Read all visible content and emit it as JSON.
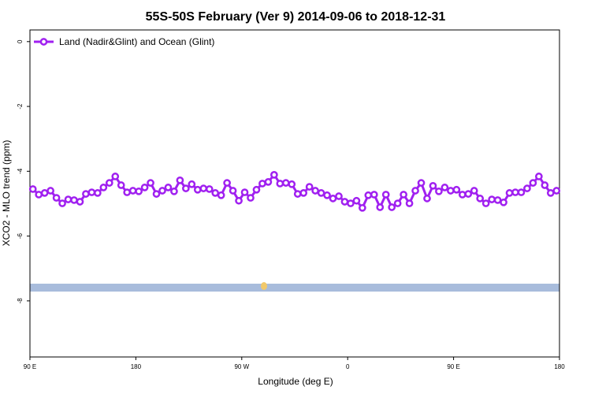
{
  "chart_data": {
    "type": "line",
    "title": "55S-50S February (Ver 9)   2014-09-06 to 2018-12-31",
    "x_label": "Longitude (deg E)",
    "y_label": "XCO2 - MLO trend (ppm)",
    "legend": "top-left",
    "xlim": [
      90,
      540
    ],
    "xticks": [
      {
        "value": 90,
        "label": "90 E"
      },
      180,
      {
        "value": 270,
        "label": "90 W"
      },
      {
        "value": 360,
        "label": "0"
      },
      {
        "value": 450,
        "label": "90 E"
      },
      {
        "value": 540,
        "label": "180"
      }
    ],
    "ylim": [
      -9.73,
      0.36
    ],
    "yticks": [
      0,
      -2,
      -4,
      -6,
      -8
    ],
    "series": [
      {
        "name": "Land (Nadir&Glint) and Ocean (Glint)",
        "color": "#a020f0",
        "x": [
          92.5,
          97.5,
          102.5,
          107.5,
          112.5,
          117.5,
          122.5,
          127.5,
          132.5,
          137.5,
          142.5,
          147.5,
          152.5,
          157.5,
          162.5,
          167.5,
          172.5,
          177.5,
          182.5,
          187.5,
          192.5,
          197.5,
          202.5,
          207.5,
          212.5,
          217.5,
          222.5,
          227.5,
          232.5,
          237.5,
          242.5,
          247.5,
          252.5,
          257.5,
          262.5,
          267.5,
          272.5,
          277.5,
          282.5,
          287.5,
          292.5,
          297.5,
          302.5,
          307.5,
          312.5,
          317.5,
          322.5,
          327.5,
          332.5,
          337.5,
          342.5,
          347.5,
          352.5,
          357.5,
          362.5,
          367.5,
          372.5,
          377.5,
          382.5,
          387.5,
          392.5,
          397.5,
          402.5,
          407.5,
          412.5,
          417.5,
          422.5,
          427.5,
          432.5,
          437.5,
          442.5,
          447.5,
          452.5,
          457.5,
          462.5,
          467.5,
          472.5,
          477.5,
          482.5,
          487.5,
          492.5,
          497.5,
          502.5,
          507.5,
          512.5,
          517.5,
          522.5,
          527.5,
          532.5,
          537.5
        ],
        "values": [
          -4.55,
          -4.72,
          -4.67,
          -4.6,
          -4.82,
          -4.99,
          -4.87,
          -4.89,
          -4.94,
          -4.7,
          -4.65,
          -4.67,
          -4.5,
          -4.36,
          -4.16,
          -4.43,
          -4.65,
          -4.6,
          -4.62,
          -4.5,
          -4.36,
          -4.7,
          -4.6,
          -4.5,
          -4.62,
          -4.28,
          -4.53,
          -4.4,
          -4.57,
          -4.53,
          -4.55,
          -4.67,
          -4.74,
          -4.36,
          -4.6,
          -4.91,
          -4.65,
          -4.82,
          -4.57,
          -4.38,
          -4.33,
          -4.11,
          -4.38,
          -4.36,
          -4.4,
          -4.7,
          -4.67,
          -4.48,
          -4.6,
          -4.67,
          -4.74,
          -4.84,
          -4.77,
          -4.94,
          -4.99,
          -4.91,
          -5.13,
          -4.74,
          -4.72,
          -5.11,
          -4.72,
          -5.11,
          -4.99,
          -4.72,
          -4.99,
          -4.6,
          -4.36,
          -4.84,
          -4.45,
          -4.62,
          -4.5,
          -4.6,
          -4.57,
          -4.72,
          -4.7,
          -4.6,
          -4.84,
          -4.99,
          -4.87,
          -4.89,
          -4.96,
          -4.67,
          -4.65,
          -4.65,
          -4.53,
          -4.36,
          -4.16,
          -4.43,
          -4.67,
          -4.6
        ]
      }
    ]
  }
}
